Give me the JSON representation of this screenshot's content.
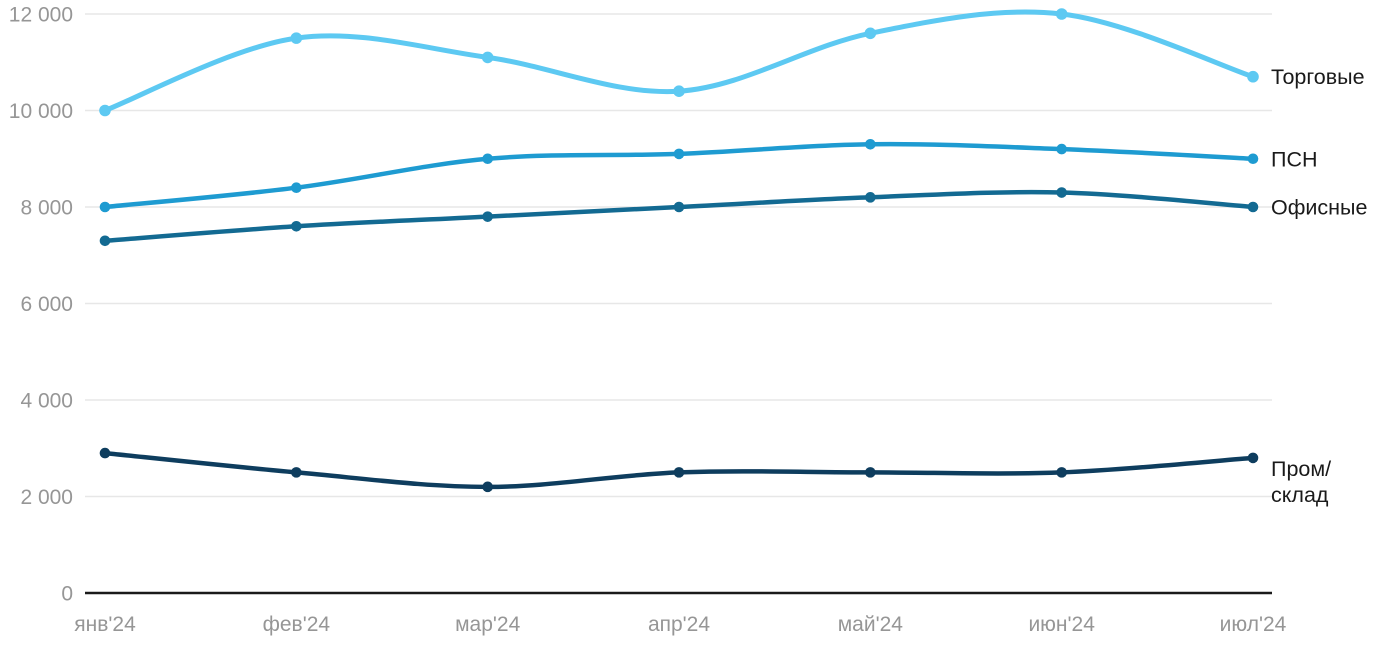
{
  "chart_data": {
    "type": "line",
    "title": "",
    "categories": [
      "янв'24",
      "фев'24",
      "мар'24",
      "апр'24",
      "май'24",
      "июн'24",
      "июл'24"
    ],
    "series": [
      {
        "name": "Торговые",
        "label_lines": [
          "Торговые"
        ],
        "color": "#5dc9f2",
        "values": [
          10000,
          11500,
          11100,
          10400,
          11600,
          12000,
          10700
        ]
      },
      {
        "name": "ПСН",
        "label_lines": [
          "ПСН"
        ],
        "color": "#1e9bd1",
        "values": [
          8000,
          8400,
          9000,
          9100,
          9300,
          9200,
          9000
        ]
      },
      {
        "name": "Офисные",
        "label_lines": [
          "Офисные"
        ],
        "color": "#136a92",
        "values": [
          7300,
          7600,
          7800,
          8000,
          8200,
          8300,
          8000
        ]
      },
      {
        "name": "Пром/склад",
        "label_lines": [
          "Пром/",
          "склад"
        ],
        "color": "#0e3d5e",
        "values": [
          2900,
          2500,
          2200,
          2500,
          2500,
          2500,
          2800
        ]
      }
    ],
    "xlabel": "",
    "ylabel": "",
    "y_axis": {
      "min": 0,
      "max": 12000,
      "tick_step": 2000,
      "tick_values": [
        0,
        2000,
        4000,
        6000,
        8000,
        10000,
        12000
      ],
      "tick_labels": [
        "0",
        "2 000",
        "4 000",
        "6 000",
        "8 000",
        "10 000",
        "12 000"
      ]
    },
    "grid": true,
    "legend_position": "right-at-line-ends",
    "colors": {
      "background": "#ffffff",
      "gridline": "#e7e7e7",
      "axis_line": "#1a1a1a",
      "tick_text": "#969696",
      "series_label_text": "#1a1a1a"
    }
  }
}
